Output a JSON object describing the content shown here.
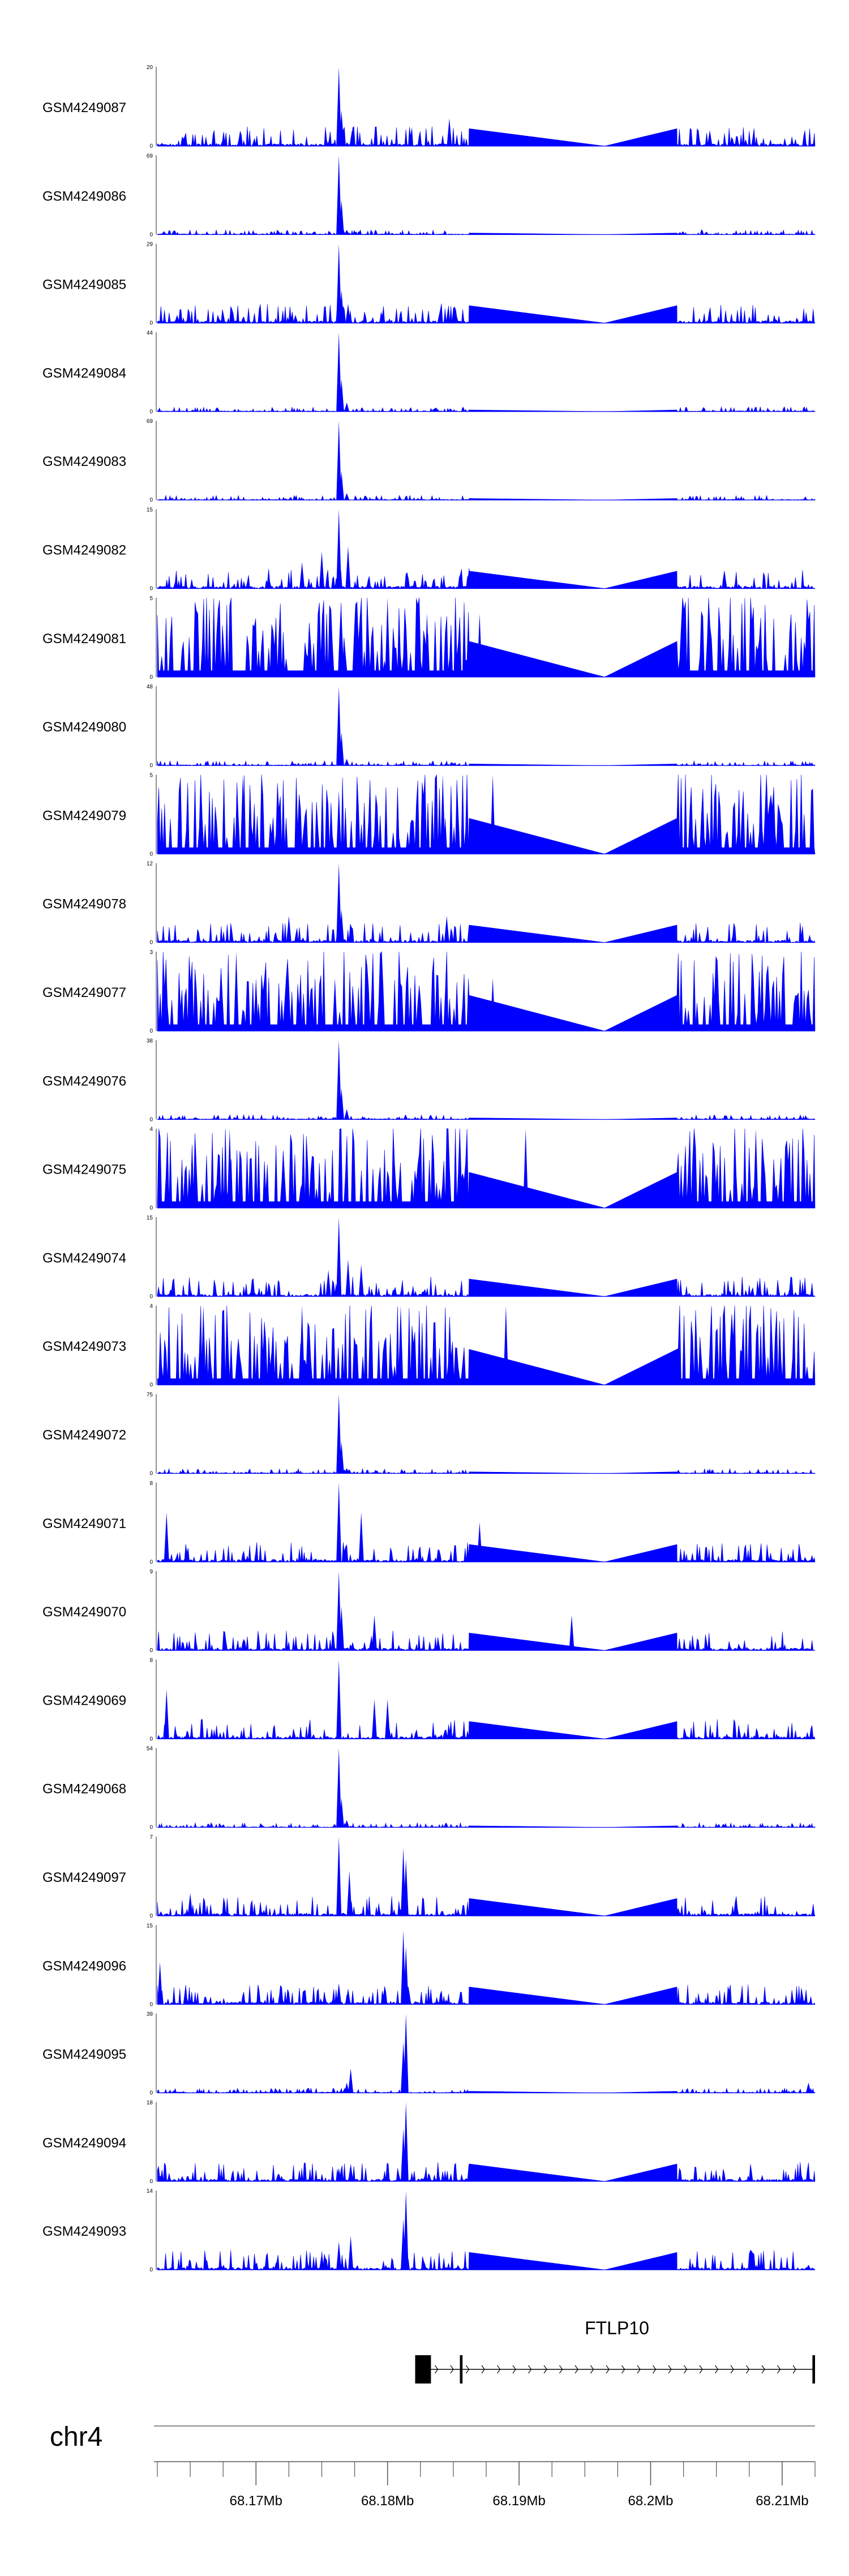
{
  "chart_data": {
    "type": "area",
    "color": "#0000ff",
    "x_range_mb": [
      68.1625,
      68.2125
    ],
    "tracks": [
      {
        "label": "GSM4249087",
        "ymax": "20",
        "ymin": "0",
        "max": 20,
        "style": "dense",
        "peaks": [
          [
            68.1763,
            20
          ],
          [
            68.1765,
            9
          ],
          [
            68.1773,
            4
          ],
          [
            68.1847,
            7
          ],
          [
            68.2045,
            4
          ]
        ]
      },
      {
        "label": "GSM4249086",
        "ymax": "69",
        "ymin": "0",
        "max": 69,
        "style": "sparse",
        "peaks": [
          [
            68.1763,
            69
          ],
          [
            68.1765,
            30
          ],
          [
            68.1769,
            4
          ],
          [
            68.163,
            3
          ]
        ]
      },
      {
        "label": "GSM4249085",
        "ymax": "29",
        "ymin": "0",
        "max": 29,
        "style": "dense",
        "peaks": [
          [
            68.1763,
            29
          ],
          [
            68.1765,
            12
          ],
          [
            68.177,
            7
          ],
          [
            68.164,
            3
          ],
          [
            68.173,
            3
          ]
        ]
      },
      {
        "label": "GSM4249084",
        "ymax": "44",
        "ymin": "0",
        "max": 44,
        "style": "sparse",
        "peaks": [
          [
            68.1763,
            44
          ],
          [
            68.1765,
            18
          ],
          [
            68.1769,
            5
          ]
        ]
      },
      {
        "label": "GSM4249083",
        "ymax": "69",
        "ymin": "0",
        "max": 69,
        "style": "sparse",
        "peaks": [
          [
            68.1763,
            69
          ],
          [
            68.1765,
            25
          ],
          [
            68.1769,
            6
          ]
        ]
      },
      {
        "label": "GSM4249082",
        "ymax": "15",
        "ymin": "0",
        "max": 15,
        "style": "dense",
        "peaks": [
          [
            68.1763,
            15
          ],
          [
            68.177,
            8
          ],
          [
            68.175,
            7
          ],
          [
            68.1735,
            5
          ],
          [
            68.1862,
            4
          ]
        ]
      },
      {
        "label": "GSM4249081",
        "ymax": "5",
        "ymin": "0",
        "max": 5,
        "style": "spiky",
        "peaks": [
          [
            68.18,
            5
          ],
          [
            68.1765,
            4
          ],
          [
            68.187,
            4
          ],
          [
            68.183,
            4
          ]
        ]
      },
      {
        "label": "GSM4249080",
        "ymax": "48",
        "ymin": "0",
        "max": 48,
        "style": "sparse",
        "peaks": [
          [
            68.1763,
            48
          ],
          [
            68.1765,
            20
          ],
          [
            68.1769,
            4
          ]
        ]
      },
      {
        "label": "GSM4249079",
        "ymax": "5",
        "ymin": "0",
        "max": 5,
        "style": "spiky",
        "peaks": [
          [
            68.169,
            5
          ],
          [
            68.1842,
            5
          ],
          [
            68.188,
            5
          ],
          [
            68.1763,
            4
          ]
        ]
      },
      {
        "label": "GSM4249078",
        "ymax": "12",
        "ymin": "0",
        "max": 12,
        "style": "dense",
        "peaks": [
          [
            68.1763,
            12
          ],
          [
            68.1765,
            5
          ],
          [
            68.1725,
            4
          ],
          [
            68.1845,
            4
          ]
        ]
      },
      {
        "label": "GSM4249077",
        "ymax": "3",
        "ymin": "0",
        "max": 3,
        "style": "spiky",
        "peaks": [
          [
            68.1685,
            3
          ],
          [
            68.17,
            2
          ],
          [
            68.176,
            2
          ],
          [
            68.188,
            2
          ]
        ]
      },
      {
        "label": "GSM4249076",
        "ymax": "38",
        "ymin": "0",
        "max": 38,
        "style": "sparse",
        "peaks": [
          [
            68.1763,
            38
          ],
          [
            68.1765,
            15
          ],
          [
            68.1769,
            5
          ]
        ]
      },
      {
        "label": "GSM4249075",
        "ymax": "4",
        "ymin": "0",
        "max": 4,
        "style": "spiky",
        "peaks": [
          [
            68.168,
            4
          ],
          [
            68.1855,
            4
          ],
          [
            68.1905,
            4
          ],
          [
            68.208,
            4
          ]
        ]
      },
      {
        "label": "GSM4249074",
        "ymax": "15",
        "ymin": "0",
        "max": 15,
        "style": "dense",
        "peaks": [
          [
            68.1763,
            15
          ],
          [
            68.177,
            7
          ],
          [
            68.178,
            6
          ],
          [
            68.1755,
            5
          ]
        ]
      },
      {
        "label": "GSM4249073",
        "ymax": "4",
        "ymin": "0",
        "max": 4,
        "style": "spiky",
        "peaks": [
          [
            68.166,
            4
          ],
          [
            68.1735,
            4
          ],
          [
            68.181,
            4
          ],
          [
            68.189,
            4
          ]
        ]
      },
      {
        "label": "GSM4249072",
        "ymax": "75",
        "ymin": "0",
        "max": 75,
        "style": "sparse",
        "peaks": [
          [
            68.1763,
            75
          ],
          [
            68.1765,
            30
          ],
          [
            68.1769,
            5
          ]
        ]
      },
      {
        "label": "GSM4249071",
        "ymax": "8",
        "ymin": "0",
        "max": 8,
        "style": "dense",
        "peaks": [
          [
            68.1763,
            8
          ],
          [
            68.1632,
            5
          ],
          [
            68.178,
            5
          ],
          [
            68.187,
            4
          ]
        ]
      },
      {
        "label": "GSM4249070",
        "ymax": "9",
        "ymin": "0",
        "max": 9,
        "style": "dense",
        "peaks": [
          [
            68.1763,
            9
          ],
          [
            68.1765,
            5
          ],
          [
            68.194,
            4
          ],
          [
            68.179,
            4
          ]
        ]
      },
      {
        "label": "GSM4249069",
        "ymax": "8",
        "ymin": "0",
        "max": 8,
        "style": "dense",
        "peaks": [
          [
            68.1763,
            8
          ],
          [
            68.1632,
            5
          ],
          [
            68.179,
            4
          ],
          [
            68.18,
            4
          ]
        ]
      },
      {
        "label": "GSM4249068",
        "ymax": "54",
        "ymin": "0",
        "max": 54,
        "style": "sparse",
        "peaks": [
          [
            68.1763,
            54
          ],
          [
            68.1765,
            20
          ],
          [
            68.1769,
            5
          ]
        ]
      },
      {
        "label": "GSM4249097",
        "ymax": "7",
        "ymin": "0",
        "max": 7,
        "style": "dense",
        "peaks": [
          [
            68.1763,
            7
          ],
          [
            68.1771,
            4
          ],
          [
            68.1812,
            6
          ],
          [
            68.1814,
            5
          ],
          [
            68.165,
            2
          ]
        ]
      },
      {
        "label": "GSM4249096",
        "ymax": "15",
        "ymin": "0",
        "max": 15,
        "style": "dense",
        "peaks": [
          [
            68.1627,
            8
          ],
          [
            68.1812,
            14
          ],
          [
            68.1814,
            11
          ],
          [
            68.1763,
            4
          ],
          [
            68.177,
            3
          ]
        ]
      },
      {
        "label": "GSM4249095",
        "ymax": "39",
        "ymin": "0",
        "max": 39,
        "style": "sparse",
        "peaks": [
          [
            68.1814,
            39
          ],
          [
            68.1812,
            25
          ],
          [
            68.1772,
            12
          ],
          [
            68.1769,
            5
          ],
          [
            68.212,
            5
          ]
        ]
      },
      {
        "label": "GSM4249094",
        "ymax": "18",
        "ymin": "0",
        "max": 18,
        "style": "dense",
        "peaks": [
          [
            68.1814,
            18
          ],
          [
            68.1812,
            12
          ],
          [
            68.1772,
            4
          ],
          [
            68.1763,
            3
          ]
        ]
      },
      {
        "label": "GSM4249093",
        "ymax": "14",
        "ymin": "0",
        "max": 14,
        "style": "dense",
        "peaks": [
          [
            68.1814,
            14
          ],
          [
            68.1812,
            9
          ],
          [
            68.1772,
            6
          ],
          [
            68.1763,
            5
          ],
          [
            68.175,
            3
          ]
        ]
      }
    ],
    "gene": {
      "name": "FTLP10",
      "start_mb": 68.1821,
      "end_mb": 68.2125,
      "exons": [
        [
          68.1821,
          68.1833
        ],
        [
          68.1855,
          68.1857
        ],
        [
          68.2123,
          68.2125
        ]
      ],
      "strand": ">"
    },
    "chromosome": "chr4",
    "axis": {
      "ticks_mb": [
        68.1625,
        68.165,
        68.1675,
        68.17,
        68.1725,
        68.175,
        68.1775,
        68.18,
        68.1825,
        68.185,
        68.1875,
        68.19,
        68.1925,
        68.195,
        68.1975,
        68.2,
        68.2025,
        68.205,
        68.2075,
        68.21,
        68.2125
      ],
      "labeled_ticks": [
        {
          "mb": 68.17,
          "label": "68.17Mb"
        },
        {
          "mb": 68.18,
          "label": "68.18Mb"
        },
        {
          "mb": 68.19,
          "label": "68.19Mb"
        },
        {
          "mb": 68.2,
          "label": "68.2Mb"
        },
        {
          "mb": 68.21,
          "label": "68.21Mb"
        }
      ]
    }
  }
}
